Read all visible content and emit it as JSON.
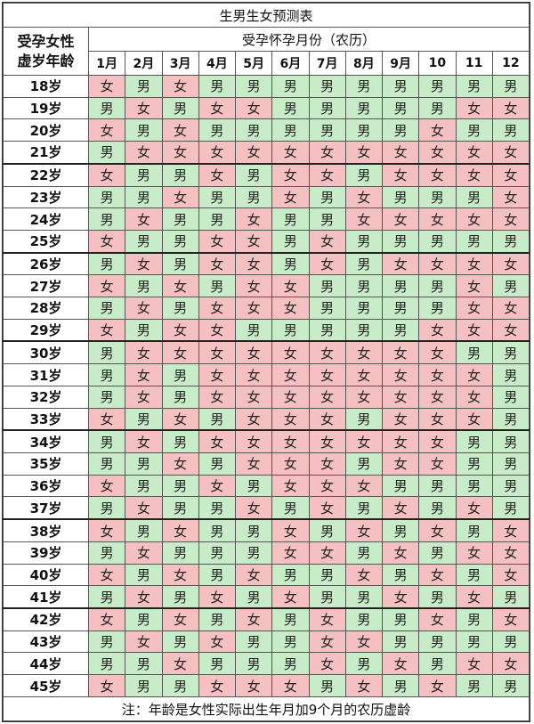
{
  "title": "生男生女预测表",
  "age_header": [
    "受孕女性",
    "虚岁年龄"
  ],
  "months_header": "受孕怀孕月份（农历）",
  "months": [
    "1月",
    "2月",
    "3月",
    "4月",
    "5月",
    "6月",
    "7月",
    "8月",
    "9月",
    "10",
    "11",
    "12"
  ],
  "labels": {
    "boy": "男",
    "girl": "女"
  },
  "colors": {
    "boy": "#c8ecc8",
    "girl": "#f5c0c2"
  },
  "rows": [
    {
      "age": "18岁",
      "cells": [
        "女",
        "男",
        "女",
        "男",
        "男",
        "男",
        "男",
        "男",
        "男",
        "男",
        "男",
        "男"
      ]
    },
    {
      "age": "19岁",
      "cells": [
        "男",
        "女",
        "男",
        "女",
        "女",
        "男",
        "男",
        "男",
        "男",
        "男",
        "女",
        "女"
      ]
    },
    {
      "age": "20岁",
      "cells": [
        "女",
        "男",
        "女",
        "男",
        "男",
        "男",
        "男",
        "男",
        "男",
        "女",
        "男",
        "男"
      ]
    },
    {
      "age": "21岁",
      "cells": [
        "男",
        "女",
        "女",
        "女",
        "女",
        "女",
        "女",
        "女",
        "女",
        "女",
        "女",
        "女"
      ]
    },
    {
      "age": "22岁",
      "cells": [
        "女",
        "男",
        "男",
        "女",
        "男",
        "女",
        "女",
        "男",
        "女",
        "女",
        "女",
        "女"
      ]
    },
    {
      "age": "23岁",
      "cells": [
        "男",
        "男",
        "女",
        "男",
        "男",
        "女",
        "男",
        "女",
        "男",
        "男",
        "男",
        "女"
      ]
    },
    {
      "age": "24岁",
      "cells": [
        "男",
        "女",
        "男",
        "男",
        "女",
        "男",
        "男",
        "女",
        "女",
        "女",
        "女",
        "女"
      ]
    },
    {
      "age": "25岁",
      "cells": [
        "女",
        "男",
        "男",
        "女",
        "女",
        "男",
        "女",
        "男",
        "男",
        "男",
        "男",
        "男"
      ]
    },
    {
      "age": "26岁",
      "cells": [
        "男",
        "女",
        "男",
        "女",
        "女",
        "男",
        "女",
        "男",
        "女",
        "女",
        "女",
        "女"
      ]
    },
    {
      "age": "27岁",
      "cells": [
        "女",
        "男",
        "女",
        "男",
        "女",
        "女",
        "男",
        "男",
        "男",
        "男",
        "女",
        "男"
      ]
    },
    {
      "age": "28岁",
      "cells": [
        "男",
        "女",
        "男",
        "女",
        "女",
        "女",
        "男",
        "男",
        "男",
        "男",
        "女",
        "女"
      ]
    },
    {
      "age": "29岁",
      "cells": [
        "女",
        "男",
        "女",
        "女",
        "男",
        "男",
        "男",
        "男",
        "男",
        "女",
        "女",
        "女"
      ]
    },
    {
      "age": "30岁",
      "cells": [
        "男",
        "女",
        "女",
        "女",
        "女",
        "女",
        "女",
        "女",
        "女",
        "女",
        "男",
        "男"
      ]
    },
    {
      "age": "31岁",
      "cells": [
        "男",
        "女",
        "男",
        "女",
        "女",
        "女",
        "女",
        "女",
        "女",
        "女",
        "女",
        "男"
      ]
    },
    {
      "age": "32岁",
      "cells": [
        "男",
        "女",
        "男",
        "女",
        "女",
        "女",
        "女",
        "女",
        "女",
        "女",
        "女",
        "男"
      ]
    },
    {
      "age": "33岁",
      "cells": [
        "女",
        "男",
        "女",
        "男",
        "女",
        "女",
        "女",
        "男",
        "女",
        "女",
        "女",
        "男"
      ]
    },
    {
      "age": "34岁",
      "cells": [
        "男",
        "女",
        "男",
        "女",
        "女",
        "女",
        "女",
        "女",
        "女",
        "女",
        "男",
        "男"
      ]
    },
    {
      "age": "35岁",
      "cells": [
        "男",
        "男",
        "女",
        "男",
        "女",
        "女",
        "女",
        "男",
        "女",
        "女",
        "男",
        "男"
      ]
    },
    {
      "age": "36岁",
      "cells": [
        "女",
        "男",
        "男",
        "女",
        "男",
        "女",
        "女",
        "女",
        "男",
        "男",
        "男",
        "男"
      ]
    },
    {
      "age": "37岁",
      "cells": [
        "男",
        "女",
        "男",
        "男",
        "女",
        "男",
        "女",
        "男",
        "女",
        "男",
        "女",
        "男"
      ]
    },
    {
      "age": "38岁",
      "cells": [
        "女",
        "男",
        "女",
        "男",
        "男",
        "女",
        "男",
        "女",
        "男",
        "女",
        "男",
        "女"
      ]
    },
    {
      "age": "39岁",
      "cells": [
        "男",
        "女",
        "男",
        "男",
        "男",
        "女",
        "女",
        "男",
        "女",
        "男",
        "女",
        "女"
      ]
    },
    {
      "age": "40岁",
      "cells": [
        "女",
        "男",
        "女",
        "男",
        "女",
        "男",
        "男",
        "女",
        "男",
        "女",
        "男",
        "女"
      ]
    },
    {
      "age": "41岁",
      "cells": [
        "男",
        "女",
        "男",
        "女",
        "男",
        "女",
        "男",
        "男",
        "女",
        "男",
        "女",
        "男"
      ]
    },
    {
      "age": "42岁",
      "cells": [
        "女",
        "男",
        "女",
        "男",
        "女",
        "男",
        "女",
        "男",
        "男",
        "女",
        "男",
        "女"
      ]
    },
    {
      "age": "43岁",
      "cells": [
        "男",
        "女",
        "男",
        "女",
        "男",
        "男",
        "女",
        "女",
        "男",
        "男",
        "男",
        "男"
      ]
    },
    {
      "age": "44岁",
      "cells": [
        "男",
        "男",
        "女",
        "男",
        "男",
        "男",
        "女",
        "男",
        "女",
        "男",
        "女",
        "女"
      ]
    },
    {
      "age": "45岁",
      "cells": [
        "女",
        "男",
        "男",
        "女",
        "女",
        "女",
        "男",
        "女",
        "男",
        "女",
        "男",
        "男"
      ]
    }
  ],
  "note": "注：年龄是女性实际出生年月加9个月的农历虚龄"
}
